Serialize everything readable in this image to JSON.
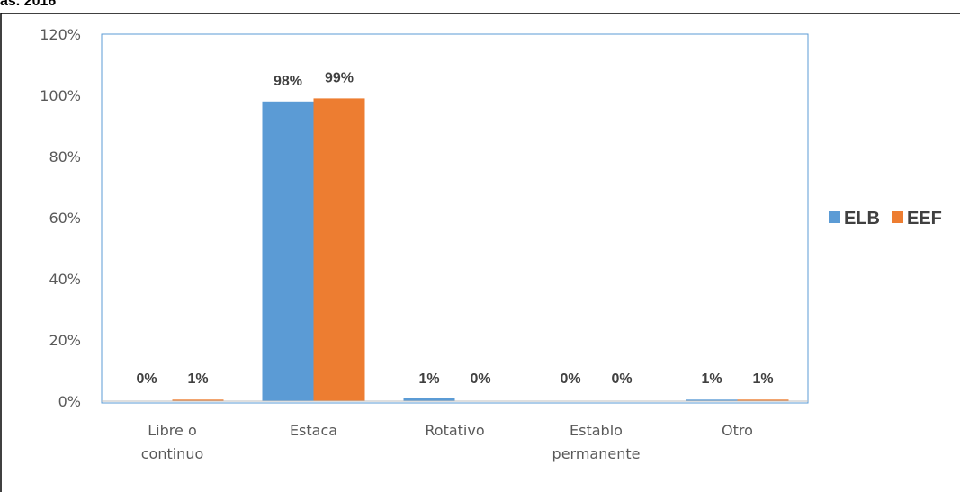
{
  "header": {
    "fragment": "as. 2016"
  },
  "chart_data": {
    "type": "bar",
    "categories": [
      [
        "Libre o",
        "continuo"
      ],
      [
        "Estaca"
      ],
      [
        "Rotativo"
      ],
      [
        "Establo",
        "permanente"
      ],
      [
        "Otro"
      ]
    ],
    "series": [
      {
        "name": "ELB",
        "color": "#5B9BD5",
        "values": [
          0,
          98,
          1,
          0,
          0.5
        ],
        "labels": [
          "0%",
          "98%",
          "1%",
          "0%",
          "1%"
        ]
      },
      {
        "name": "EEF",
        "color": "#ED7D31",
        "values": [
          0.5,
          99,
          0,
          0,
          0.5
        ],
        "labels": [
          "1%",
          "99%",
          "0%",
          "0%",
          "1%"
        ]
      }
    ],
    "ylim": [
      0,
      120
    ],
    "yticks": [
      "0%",
      "20%",
      "40%",
      "60%",
      "80%",
      "100%",
      "120%"
    ],
    "ytick_values": [
      0,
      20,
      40,
      60,
      80,
      100,
      120
    ],
    "grid": false,
    "legend_position": "right",
    "title": "",
    "xlabel": "",
    "ylabel": ""
  },
  "colors": {
    "axis": "#BFBFBF",
    "plot_border": "#5B9BD5",
    "frame": "#000000"
  }
}
